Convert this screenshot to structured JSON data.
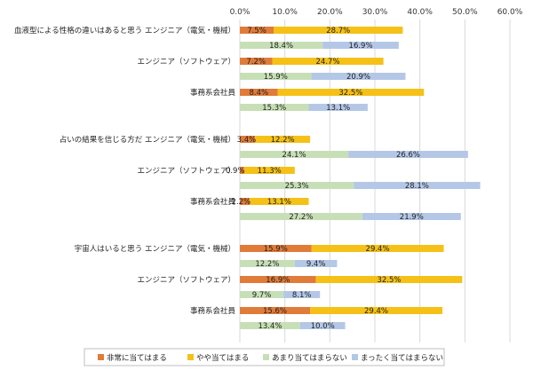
{
  "chart_data": {
    "type": "bar",
    "orientation": "horizontal",
    "stacked": true,
    "xlim": [
      0,
      60
    ],
    "x_ticks": [
      "0.0%",
      "10.0%",
      "20.0%",
      "30.0%",
      "40.0%",
      "50.0%",
      "60.0%"
    ],
    "grid": true,
    "legend_position": "bottom",
    "series": [
      {
        "name": "非常に当てはまる",
        "color": "#e07b39"
      },
      {
        "name": "やや当てはまる",
        "color": "#f5c117"
      },
      {
        "name": "あまり当てはまらない",
        "color": "#c7dfb6"
      },
      {
        "name": "まったく当てはまらない",
        "color": "#b4c7e7"
      }
    ],
    "groups": [
      {
        "title": "血液型による性格の違いはあると思う",
        "rows": [
          {
            "label": "エンジニア（電気・機械）",
            "agree": [
              7.5,
              28.7
            ],
            "agree_text": [
              "7.5%",
              "28.7%"
            ],
            "disagree": [
              18.4,
              16.9
            ],
            "disagree_text": [
              "18.4%",
              "16.9%"
            ]
          },
          {
            "label": "エンジニア（ソフトウェア）",
            "agree": [
              7.2,
              24.7
            ],
            "agree_text": [
              "7.2%",
              "24.7%"
            ],
            "disagree": [
              15.9,
              20.9
            ],
            "disagree_text": [
              "15.9%",
              "20.9%"
            ]
          },
          {
            "label": "事務系会社員",
            "agree": [
              8.4,
              32.5
            ],
            "agree_text": [
              "8.4%",
              "32.5%"
            ],
            "disagree": [
              15.3,
              13.1
            ],
            "disagree_text": [
              "15.3%",
              "13.1%"
            ]
          }
        ]
      },
      {
        "title": "占いの結果を信じる方だ",
        "rows": [
          {
            "label": "エンジニア（電気・機械）",
            "agree": [
              3.4,
              12.2
            ],
            "agree_text": [
              "3.4%",
              "12.2%"
            ],
            "disagree": [
              24.1,
              26.6
            ],
            "disagree_text": [
              "24.1%",
              "26.6%"
            ]
          },
          {
            "label": "エンジニア（ソフトウェア）",
            "agree": [
              0.9,
              11.3
            ],
            "agree_text": [
              "0.9%",
              "11.3%"
            ],
            "disagree": [
              25.3,
              28.1
            ],
            "disagree_text": [
              "25.3%",
              "28.1%"
            ]
          },
          {
            "label": "事務系会社員",
            "agree": [
              2.2,
              13.1
            ],
            "agree_text": [
              "2.2%",
              "13.1%"
            ],
            "disagree": [
              27.2,
              21.9
            ],
            "disagree_text": [
              "27.2%",
              "21.9%"
            ]
          }
        ]
      },
      {
        "title": "宇宙人はいると思う",
        "rows": [
          {
            "label": "エンジニア（電気・機械）",
            "agree": [
              15.9,
              29.4
            ],
            "agree_text": [
              "15.9%",
              "29.4%"
            ],
            "disagree": [
              12.2,
              9.4
            ],
            "disagree_text": [
              "12.2%",
              "9.4%"
            ]
          },
          {
            "label": "エンジニア（ソフトウェア）",
            "agree": [
              16.9,
              32.5
            ],
            "agree_text": [
              "16.9%",
              "32.5%"
            ],
            "disagree": [
              9.7,
              8.1
            ],
            "disagree_text": [
              "9.7%",
              "8.1%"
            ]
          },
          {
            "label": "事務系会社員",
            "agree": [
              15.6,
              29.4
            ],
            "agree_text": [
              "15.6%",
              "29.4%"
            ],
            "disagree": [
              13.4,
              10.0
            ],
            "disagree_text": [
              "13.4%",
              "10.0%"
            ]
          }
        ]
      }
    ]
  }
}
